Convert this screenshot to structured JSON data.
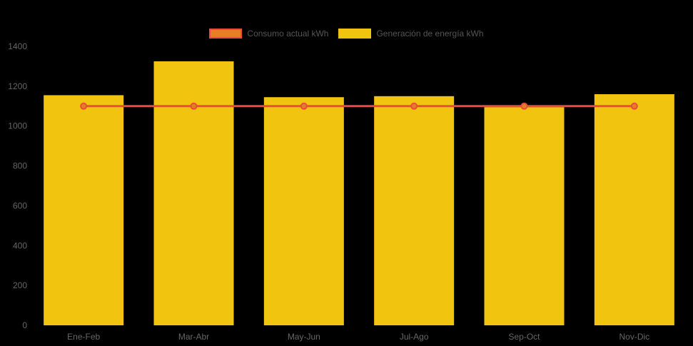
{
  "chart_data": {
    "type": "bar",
    "categories": [
      "Ene-Feb",
      "Mar-Abr",
      "May-Jun",
      "Jul-Ago",
      "Sep-Oct",
      "Nov-Dic"
    ],
    "series": [
      {
        "name": "Consumo actual kWh",
        "type": "line",
        "values": [
          1100,
          1100,
          1100,
          1100,
          1100,
          1100
        ],
        "color": "#E74C3C",
        "point_fill": "#E67E22"
      },
      {
        "name": "Generación de energía kWh",
        "type": "bar",
        "values": [
          1155,
          1325,
          1145,
          1150,
          1095,
          1160
        ],
        "color": "#F1C40F"
      }
    ],
    "title": "",
    "xlabel": "",
    "ylabel": "",
    "ylim": [
      0,
      1400
    ],
    "yticks": [
      0,
      200,
      400,
      600,
      800,
      1000,
      1200,
      1400
    ],
    "grid": false,
    "legend_position": "top",
    "background": "#000000",
    "tick_color": "#666666",
    "legend_text_color": "#555555"
  }
}
